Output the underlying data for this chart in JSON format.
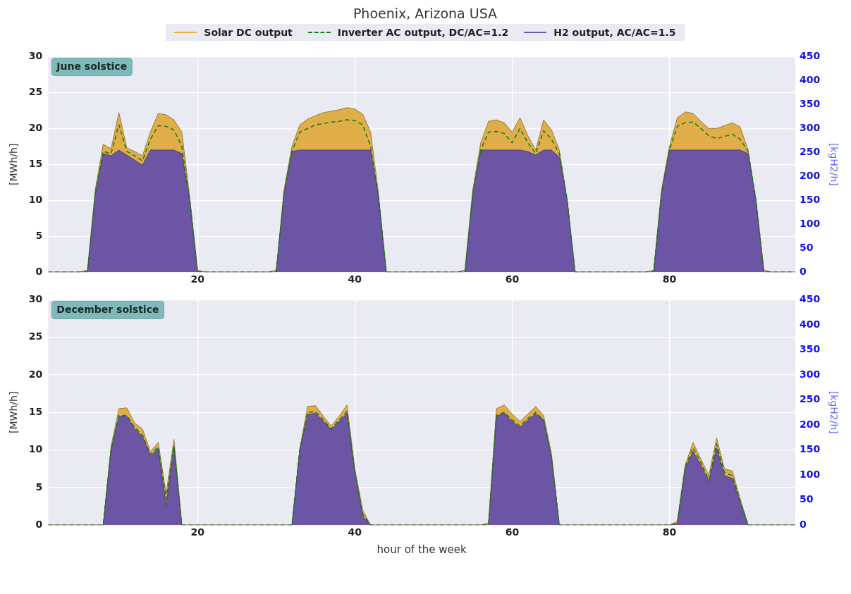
{
  "chart_data": [
    {
      "type": "area",
      "title": "Phoenix, Arizona USA",
      "ylabel": "[MWh/h]",
      "y2label": "[kgH2/h]",
      "annotations": [
        "June solstice"
      ],
      "legend": "top",
      "grid": true,
      "x": [
        1,
        2,
        3,
        4,
        5,
        6,
        7,
        8,
        9,
        10,
        11,
        12,
        13,
        14,
        15,
        16,
        17,
        18,
        19,
        20,
        21,
        22,
        23,
        24,
        25,
        26,
        27,
        28,
        29,
        30,
        31,
        32,
        33,
        34,
        35,
        36,
        37,
        38,
        39,
        40,
        41,
        42,
        43,
        44,
        45,
        46,
        47,
        48,
        49,
        50,
        51,
        52,
        53,
        54,
        55,
        56,
        57,
        58,
        59,
        60,
        61,
        62,
        63,
        64,
        65,
        66,
        67,
        68,
        69,
        70,
        71,
        72,
        73,
        74,
        75,
        76,
        77,
        78,
        79,
        80,
        81,
        82,
        83,
        84,
        85,
        86,
        87,
        88,
        89,
        90,
        91,
        92,
        93,
        94,
        95,
        96
      ],
      "xlim": [
        1,
        96
      ],
      "xticks": [
        20,
        40,
        60,
        80
      ],
      "ylim": [
        0,
        30
      ],
      "yticks": [
        0,
        5,
        10,
        15,
        20,
        25,
        30
      ],
      "y2lim": [
        0,
        450
      ],
      "y2ticks": [
        0,
        50,
        100,
        150,
        200,
        250,
        300,
        350,
        400,
        450
      ],
      "series": [
        {
          "name": "Solar DC output",
          "type": "area",
          "color": "#dfae48",
          "values": [
            0,
            0,
            0,
            0,
            0,
            0.3,
            11.5,
            17.8,
            17.2,
            22.2,
            17.3,
            16.8,
            16.2,
            19.5,
            22.1,
            21.9,
            21.2,
            19.5,
            10.5,
            0.3,
            0,
            0,
            0,
            0,
            0,
            0,
            0,
            0,
            0,
            0.3,
            11.5,
            17.5,
            20.5,
            21.3,
            21.8,
            22.2,
            22.4,
            22.6,
            22.9,
            22.7,
            22,
            19.5,
            11,
            0,
            0,
            0,
            0,
            0,
            0,
            0,
            0,
            0,
            0,
            0.3,
            11.5,
            18,
            21,
            21.2,
            20.8,
            19.5,
            21.5,
            19,
            17,
            21.2,
            19.8,
            17,
            10,
            0,
            0,
            0,
            0,
            0,
            0,
            0,
            0,
            0,
            0,
            0.3,
            11.5,
            17.5,
            21.5,
            22.3,
            22.1,
            21,
            20,
            20,
            20.4,
            20.8,
            20.2,
            17,
            10,
            0.3,
            0,
            0,
            0,
            0
          ]
        },
        {
          "name": "Inverter AC output, DC/AC=1.2",
          "type": "line",
          "line_style": "dashed",
          "color": "#1b7a1b",
          "values": [
            0,
            0,
            0,
            0,
            0,
            0.1,
            11,
            16.8,
            16.5,
            20.5,
            16.8,
            16.2,
            15.5,
            18.5,
            20.4,
            20.3,
            19.8,
            17.5,
            10,
            0.1,
            0,
            0,
            0,
            0,
            0,
            0,
            0,
            0,
            0,
            0.1,
            11,
            16.8,
            19.5,
            20,
            20.5,
            20.7,
            20.9,
            21,
            21.2,
            21.1,
            20.5,
            17.5,
            10.5,
            0,
            0,
            0,
            0,
            0,
            0,
            0,
            0,
            0,
            0,
            0.1,
            11,
            17,
            19.5,
            19.6,
            19.3,
            18,
            20,
            18,
            16.5,
            19.7,
            18.5,
            16.5,
            10,
            0,
            0,
            0,
            0,
            0,
            0,
            0,
            0,
            0,
            0,
            0.1,
            11,
            17,
            20.3,
            20.8,
            20.9,
            20,
            19,
            18.6,
            18.9,
            19.2,
            18.5,
            16.8,
            10,
            0.1,
            0,
            0,
            0,
            0
          ]
        },
        {
          "name": "H2 output, AC/AC=1.5",
          "type": "area",
          "color": "#6c55a5",
          "values": [
            0,
            0,
            0,
            0,
            0,
            0,
            11,
            16.5,
            16.2,
            17,
            16.3,
            15.6,
            14.9,
            17,
            17,
            17,
            17,
            16.5,
            10,
            0,
            0,
            0,
            0,
            0,
            0,
            0,
            0,
            0,
            0,
            0,
            11,
            16.8,
            17,
            17,
            17,
            17,
            17,
            17,
            17,
            17,
            17,
            17,
            10.5,
            0,
            0,
            0,
            0,
            0,
            0,
            0,
            0,
            0,
            0,
            0,
            11,
            17,
            17,
            17,
            17,
            17,
            17,
            16.8,
            16.3,
            17,
            17,
            16,
            10,
            0,
            0,
            0,
            0,
            0,
            0,
            0,
            0,
            0,
            0,
            0,
            11,
            17,
            17,
            17,
            17,
            17,
            17,
            17,
            17,
            17,
            17,
            16.5,
            10,
            0,
            0,
            0,
            0,
            0
          ]
        }
      ]
    },
    {
      "type": "area",
      "xlabel": "hour of the week",
      "ylabel": "[MWh/h]",
      "y2label": "[kgH2/h]",
      "annotations": [
        "December solstice"
      ],
      "grid": true,
      "x": [
        1,
        2,
        3,
        4,
        5,
        6,
        7,
        8,
        9,
        10,
        11,
        12,
        13,
        14,
        15,
        16,
        17,
        18,
        19,
        20,
        21,
        22,
        23,
        24,
        25,
        26,
        27,
        28,
        29,
        30,
        31,
        32,
        33,
        34,
        35,
        36,
        37,
        38,
        39,
        40,
        41,
        42,
        43,
        44,
        45,
        46,
        47,
        48,
        49,
        50,
        51,
        52,
        53,
        54,
        55,
        56,
        57,
        58,
        59,
        60,
        61,
        62,
        63,
        64,
        65,
        66,
        67,
        68,
        69,
        70,
        71,
        72,
        73,
        74,
        75,
        76,
        77,
        78,
        79,
        80,
        81,
        82,
        83,
        84,
        85,
        86,
        87,
        88,
        89,
        90,
        91,
        92,
        93,
        94,
        95,
        96
      ],
      "xlim": [
        1,
        96
      ],
      "xticks": [
        20,
        40,
        60,
        80
      ],
      "ylim": [
        0,
        30
      ],
      "yticks": [
        0,
        5,
        10,
        15,
        20,
        25,
        30
      ],
      "y2lim": [
        0,
        450
      ],
      "y2ticks": [
        0,
        50,
        100,
        150,
        200,
        250,
        300,
        350,
        400,
        450
      ],
      "series": [
        {
          "type": "area",
          "color": "#dfae48",
          "values": [
            0,
            0,
            0,
            0,
            0,
            0,
            0,
            0,
            10.5,
            15.5,
            15.6,
            13.6,
            12.8,
            9.8,
            11,
            4.2,
            11.4,
            0,
            0,
            0,
            0,
            0,
            0,
            0,
            0,
            0,
            0,
            0,
            0,
            0,
            0,
            0,
            10.2,
            15.8,
            15.9,
            14.5,
            13.2,
            14.5,
            16,
            7.5,
            2,
            0,
            0,
            0,
            0,
            0,
            0,
            0,
            0,
            0,
            0,
            0,
            0,
            0,
            0,
            0,
            0.3,
            15.5,
            16,
            14.8,
            13.8,
            14.8,
            15.8,
            14.6,
            9.5,
            0,
            0,
            0,
            0,
            0,
            0,
            0,
            0,
            0,
            0,
            0,
            0,
            0,
            0,
            0,
            0.5,
            8,
            11,
            8.8,
            6.6,
            11.6,
            7.5,
            7.2,
            3.5,
            0,
            0,
            0,
            0,
            0,
            0,
            0
          ]
        },
        {
          "type": "line",
          "line_style": "dashed",
          "color": "#1b7a1b",
          "values": [
            0,
            0,
            0,
            0,
            0,
            0,
            0,
            0,
            10,
            14.6,
            14.6,
            13,
            12,
            9.4,
            10.4,
            3.5,
            10.5,
            0,
            0,
            0,
            0,
            0,
            0,
            0,
            0,
            0,
            0,
            0,
            0,
            0,
            0,
            0,
            10,
            15,
            15.1,
            14,
            12.8,
            14,
            15.1,
            7,
            1.5,
            0,
            0,
            0,
            0,
            0,
            0,
            0,
            0,
            0,
            0,
            0,
            0,
            0,
            0,
            0,
            0.1,
            14.6,
            15,
            14,
            13.2,
            14.2,
            15,
            14,
            9,
            0,
            0,
            0,
            0,
            0,
            0,
            0,
            0,
            0,
            0,
            0,
            0,
            0,
            0,
            0,
            0.3,
            7.7,
            10.3,
            8.3,
            6,
            10.8,
            7,
            6.6,
            3.2,
            0,
            0,
            0,
            0,
            0,
            0,
            0
          ]
        },
        {
          "type": "area",
          "color": "#6c55a5",
          "values": [
            0,
            0,
            0,
            0,
            0,
            0,
            0,
            0,
            10,
            14.5,
            14.5,
            12.8,
            11.8,
            9.2,
            10.2,
            2.6,
            10.5,
            0,
            0,
            0,
            0,
            0,
            0,
            0,
            0,
            0,
            0,
            0,
            0,
            0,
            0,
            0,
            10,
            14.7,
            14.9,
            13.8,
            12.7,
            13.8,
            14.9,
            7,
            1.2,
            0,
            0,
            0,
            0,
            0,
            0,
            0,
            0,
            0,
            0,
            0,
            0,
            0,
            0,
            0,
            0,
            14.5,
            14.9,
            13.8,
            13,
            14,
            14.8,
            14,
            9,
            0,
            0,
            0,
            0,
            0,
            0,
            0,
            0,
            0,
            0,
            0,
            0,
            0,
            0,
            0,
            0.2,
            7.5,
            9.8,
            8,
            5.7,
            10.3,
            6.6,
            6.2,
            3,
            0,
            0,
            0,
            0,
            0,
            0,
            0
          ]
        }
      ]
    }
  ]
}
